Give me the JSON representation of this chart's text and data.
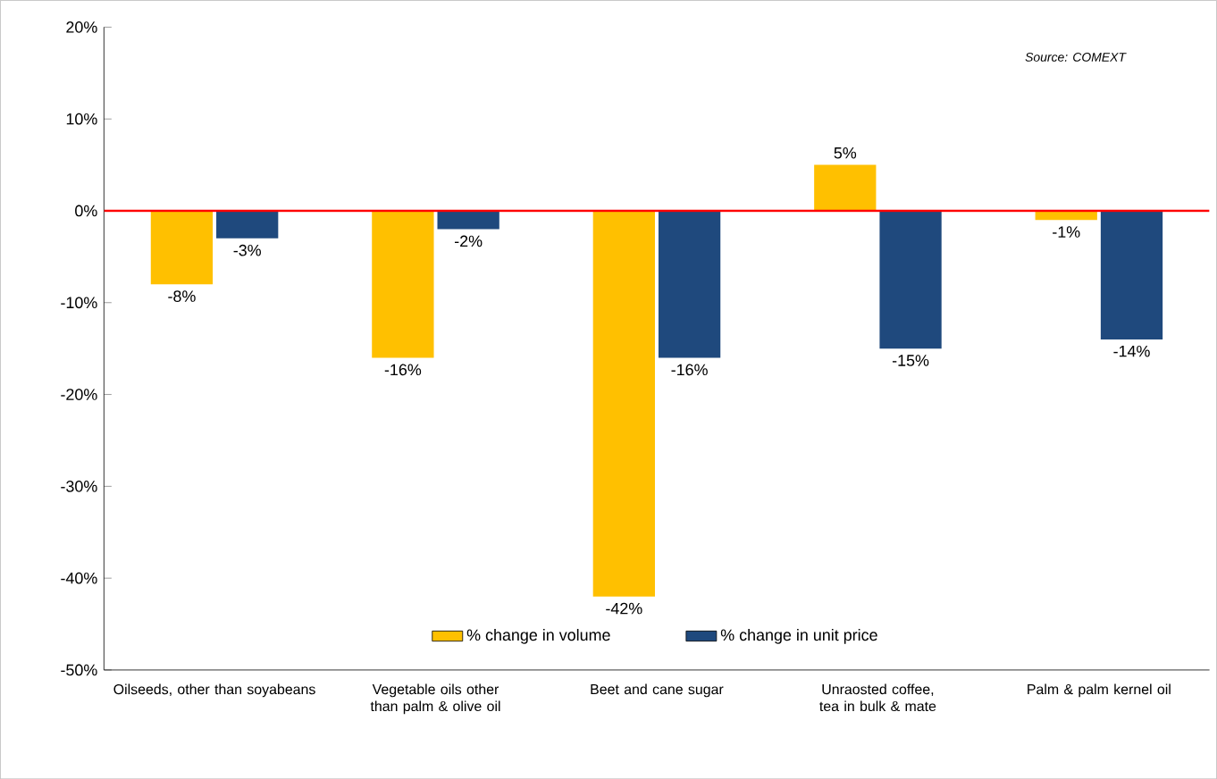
{
  "chart_data": {
    "type": "bar",
    "categories": [
      "Oilseeds, other than soyabeans",
      "Vegetable oils other than palm & olive oil",
      "Beet and cane sugar",
      "Unraosted coffee, tea in bulk & mate",
      "Palm & palm kernel oil"
    ],
    "series": [
      {
        "name": "% change in volume",
        "color": "#ffc000",
        "values": [
          -8,
          -16,
          -42,
          5,
          -1
        ],
        "value_labels": [
          "-8%",
          "-16%",
          "-42%",
          "5%",
          "-1%"
        ]
      },
      {
        "name": "% change in unit price",
        "color": "#1f497d",
        "values": [
          -3,
          -2,
          -16,
          -15,
          -14
        ],
        "value_labels": [
          "-3%",
          "-2%",
          "-16%",
          "-15%",
          "-14%"
        ]
      }
    ],
    "ylim": [
      -50,
      20
    ],
    "yticks": [
      {
        "value": -50,
        "label": "-50%"
      },
      {
        "value": -40,
        "label": "-40%"
      },
      {
        "value": -30,
        "label": "-30%"
      },
      {
        "value": -20,
        "label": "-20%"
      },
      {
        "value": -10,
        "label": "-10%"
      },
      {
        "value": 0,
        "label": "0%"
      },
      {
        "value": 10,
        "label": "10%"
      },
      {
        "value": 20,
        "label": "20%"
      }
    ],
    "ref_lines": [
      {
        "axis": "y",
        "value": 0,
        "color": "#ff0000"
      }
    ],
    "annotations": [
      "Source: COMEXT"
    ],
    "legend": "bottom",
    "grid": false
  }
}
